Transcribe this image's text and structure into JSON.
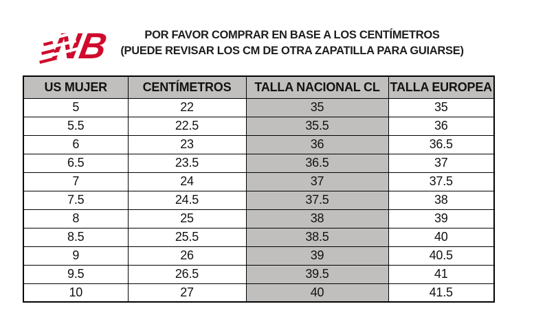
{
  "logo": {
    "brand": "New Balance",
    "monogram": "NB",
    "color": "#cf0a2c"
  },
  "title": {
    "line1": "POR FAVOR COMPRAR EN BASE A LOS CENTÍMETROS",
    "line2": "(PUEDE REVISAR LOS CM DE OTRA ZAPATILLA PARA GUIARSE)"
  },
  "table": {
    "headers": [
      "US MUJER",
      "CENTÍMETROS",
      "TALLA NACIONAL CL",
      "TALLA EUROPEA"
    ],
    "highlight_column": 2,
    "highlight_color": "#c1bfbe",
    "rows": [
      [
        "5",
        "22",
        "35",
        "35"
      ],
      [
        "5.5",
        "22.5",
        "35.5",
        "36"
      ],
      [
        "6",
        "23",
        "36",
        "36.5"
      ],
      [
        "6.5",
        "23.5",
        "36.5",
        "37"
      ],
      [
        "7",
        "24",
        "37",
        "37.5"
      ],
      [
        "7.5",
        "24.5",
        "37.5",
        "38"
      ],
      [
        "8",
        "25",
        "38",
        "39"
      ],
      [
        "8.5",
        "25.5",
        "38.5",
        "40"
      ],
      [
        "9",
        "26",
        "39",
        "40.5"
      ],
      [
        "9.5",
        "26.5",
        "39.5",
        "41"
      ],
      [
        "10",
        "27",
        "40",
        "41.5"
      ]
    ]
  }
}
